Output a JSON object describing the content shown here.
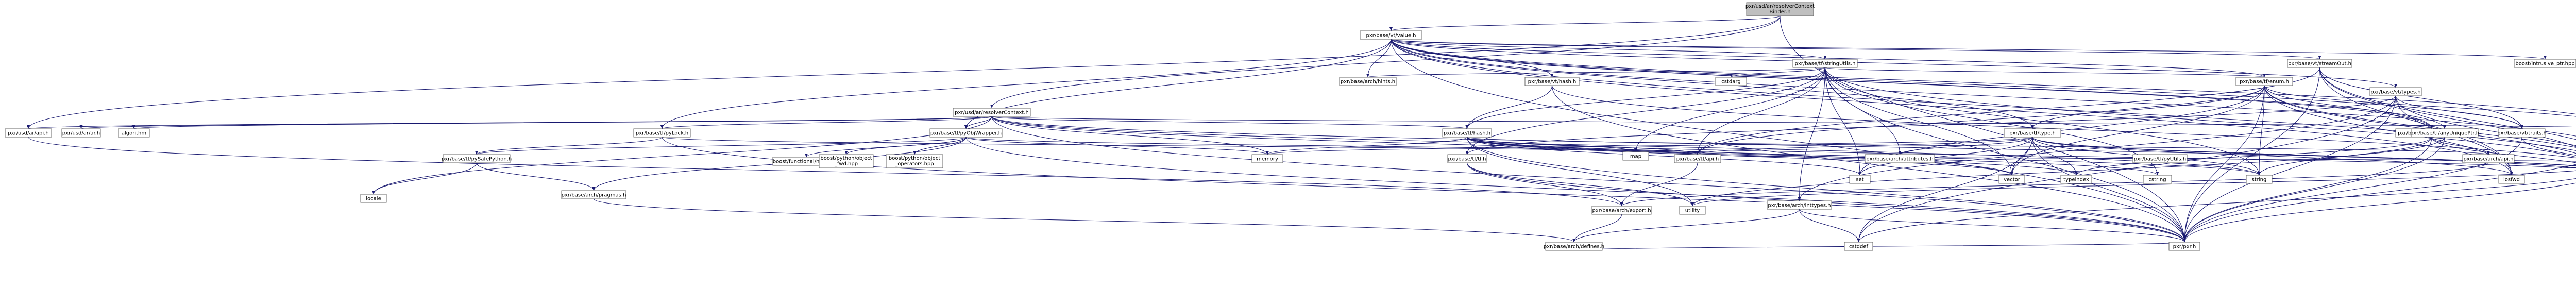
{
  "graph": {
    "nodes": [
      {
        "id": "binder",
        "label": "pxr/usd/ar/resolverContext\nBinder.h",
        "kind": "root"
      },
      {
        "id": "value",
        "label": "pxr/base/vt/value.h",
        "kind": "plain"
      },
      {
        "id": "resolverContext",
        "label": "pxr/usd/ar/resolverContext.h",
        "kind": "plain"
      },
      {
        "id": "api",
        "label": "pxr/usd/ar/api.h",
        "kind": "plain"
      },
      {
        "id": "ar",
        "label": "pxr/usd/ar/ar.h",
        "kind": "plain"
      },
      {
        "id": "algorithm",
        "label": "algorithm",
        "kind": "ext"
      },
      {
        "id": "pyLock",
        "label": "pxr/base/tf/pyLock.h",
        "kind": "plain"
      },
      {
        "id": "pyObjWrapper",
        "label": "pxr/base/tf/pyObjWrapper.h",
        "kind": "plain"
      },
      {
        "id": "pySafePython",
        "label": "pxr/base/tf/pySafePython.h",
        "kind": "red"
      },
      {
        "id": "locale",
        "label": "locale",
        "kind": "ext"
      },
      {
        "id": "pragmas",
        "label": "pxr/base/arch/pragmas.h",
        "kind": "plain"
      },
      {
        "id": "boostFunctionalHash",
        "label": "boost/functional/hash.hpp",
        "kind": "ext"
      },
      {
        "id": "boostPyObjFwd",
        "label": "boost/python/object\n_fwd.hpp",
        "kind": "ext"
      },
      {
        "id": "boostPyObjOps",
        "label": "boost/python/object\n_operators.hpp",
        "kind": "ext"
      },
      {
        "id": "memory",
        "label": "memory",
        "kind": "ext"
      },
      {
        "id": "stringUtils",
        "label": "pxr/base/tf/stringUtils.h",
        "kind": "red"
      },
      {
        "id": "hints",
        "label": "pxr/base/arch/hints.h",
        "kind": "plain"
      },
      {
        "id": "vtHash",
        "label": "pxr/base/vt/hash.h",
        "kind": "plain"
      },
      {
        "id": "cstdarg",
        "label": "cstdarg",
        "kind": "ext"
      },
      {
        "id": "tfHash",
        "label": "pxr/base/tf/hash.h",
        "kind": "plain"
      },
      {
        "id": "tf",
        "label": "pxr/base/tf/tf.h",
        "kind": "red"
      },
      {
        "id": "map",
        "label": "map",
        "kind": "ext"
      },
      {
        "id": "tfEnum",
        "label": "pxr/base/tf/enum.h",
        "kind": "red"
      },
      {
        "id": "tfType",
        "label": "pxr/base/tf/type.h",
        "kind": "red"
      },
      {
        "id": "tfApi",
        "label": "pxr/base/tf/api.h",
        "kind": "plain"
      },
      {
        "id": "attributes",
        "label": "pxr/base/arch/attributes.h",
        "kind": "plain"
      },
      {
        "id": "set",
        "label": "set",
        "kind": "ext"
      },
      {
        "id": "vector",
        "label": "vector",
        "kind": "ext"
      },
      {
        "id": "typeindex",
        "label": "typeindex",
        "kind": "ext"
      },
      {
        "id": "cstring",
        "label": "cstring",
        "kind": "ext"
      },
      {
        "id": "string",
        "label": "string",
        "kind": "ext"
      },
      {
        "id": "demangle",
        "label": "pxr/base/arch/demangle.h",
        "kind": "plain"
      },
      {
        "id": "safeTypeCompare",
        "label": "pxr/base/tf/safeTypeCompare.h",
        "kind": "plain"
      },
      {
        "id": "archApi",
        "label": "pxr/base/arch/api.h",
        "kind": "plain"
      },
      {
        "id": "typeinfo",
        "label": "typeinfo",
        "kind": "ext"
      },
      {
        "id": "streamOut",
        "label": "pxr/base/vt/streamOut.h",
        "kind": "red"
      },
      {
        "id": "boostIntrusive",
        "label": "boost/intrusive_ptr.hpp",
        "kind": "ext"
      },
      {
        "id": "vtTypes",
        "label": "pxr/base/vt/types.h",
        "kind": "red"
      },
      {
        "id": "anyUniquePtr",
        "label": "pxr/base/tf/anyUniquePtr.h",
        "kind": "plain"
      },
      {
        "id": "vtTraits",
        "label": "pxr/base/vt/traits.h",
        "kind": "red"
      },
      {
        "id": "pointerAndBits",
        "label": "pxr/base/tf/pointerAndBits.h",
        "kind": "plain"
      },
      {
        "id": "iosfwd",
        "label": "iosfwd",
        "kind": "ext"
      },
      {
        "id": "typeTraits",
        "label": "type_traits",
        "kind": "ext"
      },
      {
        "id": "utility",
        "label": "utility",
        "kind": "ext"
      },
      {
        "id": "inttypes",
        "label": "pxr/base/arch/inttypes.h",
        "kind": "red"
      },
      {
        "id": "archExport",
        "label": "pxr/base/arch/export.h",
        "kind": "plain"
      },
      {
        "id": "archDefines",
        "label": "pxr/base/arch/defines.h",
        "kind": "plain"
      },
      {
        "id": "cstddef",
        "label": "cstddef",
        "kind": "ext"
      },
      {
        "id": "pxr",
        "label": "pxr/pxr.h",
        "kind": "plain"
      },
      {
        "id": "pyUtils",
        "label": "pxr/base/tf/pyUtils.h",
        "kind": "plain"
      }
    ],
    "edges": [
      [
        "binder",
        "value"
      ],
      [
        "binder",
        "resolverContext"
      ],
      [
        "binder",
        "api"
      ],
      [
        "binder",
        "pxr"
      ],
      [
        "value",
        "stringUtils"
      ],
      [
        "value",
        "hints"
      ],
      [
        "value",
        "vtHash"
      ],
      [
        "value",
        "tfEnum"
      ],
      [
        "value",
        "streamOut"
      ],
      [
        "value",
        "boostIntrusive"
      ],
      [
        "value",
        "vtTypes"
      ],
      [
        "value",
        "anyUniquePtr"
      ],
      [
        "value",
        "vtTraits"
      ],
      [
        "value",
        "pointerAndBits"
      ],
      [
        "value",
        "pyObjWrapper"
      ],
      [
        "value",
        "pyLock"
      ],
      [
        "value",
        "safeTypeCompare"
      ],
      [
        "value",
        "demangle"
      ],
      [
        "value",
        "tfType"
      ],
      [
        "value",
        "typeTraits"
      ],
      [
        "value",
        "iosfwd"
      ],
      [
        "value",
        "pxr"
      ],
      [
        "resolverContext",
        "api"
      ],
      [
        "resolverContext",
        "ar"
      ],
      [
        "resolverContext",
        "algorithm"
      ],
      [
        "resolverContext",
        "pyLock"
      ],
      [
        "resolverContext",
        "tfHash"
      ],
      [
        "resolverContext",
        "safeTypeCompare"
      ],
      [
        "resolverContext",
        "pyObjWrapper"
      ],
      [
        "resolverContext",
        "memory"
      ],
      [
        "resolverContext",
        "string"
      ],
      [
        "resolverContext",
        "vector"
      ],
      [
        "resolverContext",
        "typeTraits"
      ],
      [
        "resolverContext",
        "pxr"
      ],
      [
        "resolverContext",
        "locale"
      ],
      [
        "api",
        "archExport"
      ],
      [
        "pyLock",
        "pySafePython"
      ],
      [
        "pyLock",
        "pxr"
      ],
      [
        "pyLock",
        "tfApi"
      ],
      [
        "pySafePython",
        "locale"
      ],
      [
        "pySafePython",
        "pragmas"
      ],
      [
        "pyObjWrapper",
        "pySafePython"
      ],
      [
        "pyObjWrapper",
        "boostFunctionalHash"
      ],
      [
        "pyObjWrapper",
        "boostPyObjFwd"
      ],
      [
        "pyObjWrapper",
        "boostPyObjOps"
      ],
      [
        "pyObjWrapper",
        "memory"
      ],
      [
        "pyObjWrapper",
        "tfApi"
      ],
      [
        "pyObjWrapper",
        "pragmas"
      ],
      [
        "pyObjWrapper",
        "pxr"
      ],
      [
        "pragmas",
        "archDefines"
      ],
      [
        "stringUtils",
        "tfHash"
      ],
      [
        "stringUtils",
        "tf"
      ],
      [
        "stringUtils",
        "tfEnum"
      ],
      [
        "stringUtils",
        "cstdarg"
      ],
      [
        "stringUtils",
        "attributes"
      ],
      [
        "stringUtils",
        "inttypes"
      ],
      [
        "stringUtils",
        "hints"
      ],
      [
        "stringUtils",
        "tfApi"
      ],
      [
        "stringUtils",
        "set"
      ],
      [
        "stringUtils",
        "vector"
      ],
      [
        "stringUtils",
        "map"
      ],
      [
        "stringUtils",
        "cstring"
      ],
      [
        "stringUtils",
        "string"
      ],
      [
        "stringUtils",
        "typeinfo"
      ],
      [
        "stringUtils",
        "pxr"
      ],
      [
        "vtHash",
        "tfHash"
      ],
      [
        "vtHash",
        "vtApi"
      ],
      [
        "vtHash",
        "typeTraits"
      ],
      [
        "vtHash",
        "pxr"
      ],
      [
        "tfHash",
        "tf"
      ],
      [
        "tfHash",
        "tfApi"
      ],
      [
        "tfHash",
        "map"
      ],
      [
        "tfHash",
        "set"
      ],
      [
        "tfHash",
        "vector"
      ],
      [
        "tfHash",
        "typeindex"
      ],
      [
        "tfHash",
        "cstring"
      ],
      [
        "tfHash",
        "string"
      ],
      [
        "tfHash",
        "memory"
      ],
      [
        "tfHash",
        "utility"
      ],
      [
        "tfHash",
        "typeTraits"
      ],
      [
        "tfHash",
        "pxr"
      ],
      [
        "tfHash",
        "archApi"
      ],
      [
        "tf",
        "utility"
      ],
      [
        "tf",
        "pxr"
      ],
      [
        "tf",
        "archExport"
      ],
      [
        "tfEnum",
        "tfType"
      ],
      [
        "tfEnum",
        "demangle"
      ],
      [
        "tfEnum",
        "safeTypeCompare"
      ],
      [
        "tfEnum",
        "tfApi"
      ],
      [
        "tfEnum",
        "preprocessorUtils"
      ],
      [
        "tfEnum",
        "iosfwd"
      ],
      [
        "tfEnum",
        "set"
      ],
      [
        "tfEnum",
        "vector"
      ],
      [
        "tfEnum",
        "typeinfo"
      ],
      [
        "tfEnum",
        "string"
      ],
      [
        "tfEnum",
        "typeTraits"
      ],
      [
        "tfEnum",
        "pxr"
      ],
      [
        "tfType",
        "tfApi"
      ],
      [
        "tfType",
        "attributes"
      ],
      [
        "tfType",
        "memory"
      ],
      [
        "tfType",
        "set"
      ],
      [
        "tfType",
        "vector"
      ],
      [
        "tfType",
        "typeindex"
      ],
      [
        "tfType",
        "typeinfo"
      ],
      [
        "tfType",
        "string"
      ],
      [
        "tfType",
        "iosfwd"
      ],
      [
        "tfType",
        "typeTraits"
      ],
      [
        "tfType",
        "pxr"
      ],
      [
        "tfType",
        "cstddef"
      ],
      [
        "tfApi",
        "archExport"
      ],
      [
        "demangle",
        "archApi"
      ],
      [
        "demangle",
        "string"
      ],
      [
        "demangle",
        "typeinfo"
      ],
      [
        "demangle",
        "typeindex"
      ],
      [
        "demangle",
        "pxr"
      ],
      [
        "safeTypeCompare",
        "typeinfo"
      ],
      [
        "safeTypeCompare",
        "pxr"
      ],
      [
        "archApi",
        "archExport"
      ],
      [
        "streamOut",
        "tfApi"
      ],
      [
        "streamOut",
        "typeinfo"
      ],
      [
        "streamOut",
        "iosfwd"
      ],
      [
        "streamOut",
        "typeTraits"
      ],
      [
        "streamOut",
        "pxr"
      ],
      [
        "streamOut",
        "vtTraits"
      ],
      [
        "vtTypes",
        "tf"
      ],
      [
        "vtTypes",
        "vtTraits"
      ],
      [
        "vtTypes",
        "inttypes"
      ],
      [
        "vtTypes",
        "iosfwd"
      ],
      [
        "vtTypes",
        "typeTraits"
      ],
      [
        "vtTypes",
        "pxr"
      ],
      [
        "vtTypes",
        "cstddef"
      ],
      [
        "anyUniquePtr",
        "pxr"
      ],
      [
        "anyUniquePtr",
        "utility"
      ],
      [
        "vtTraits",
        "typeTraits"
      ],
      [
        "vtTraits",
        "pxr"
      ],
      [
        "pointerAndBits",
        "tfApi"
      ],
      [
        "pointerAndBits",
        "pxr"
      ],
      [
        "pointerAndBits",
        "typeTraits"
      ],
      [
        "pointerAndBits",
        "cstddef"
      ],
      [
        "pointerAndBits",
        "utility"
      ],
      [
        "inttypes",
        "archDefines"
      ],
      [
        "inttypes",
        "cstddef"
      ],
      [
        "inttypes",
        "pxr"
      ],
      [
        "archExport",
        "archDefines"
      ],
      [
        "archDefines",
        "pxr"
      ]
    ]
  }
}
